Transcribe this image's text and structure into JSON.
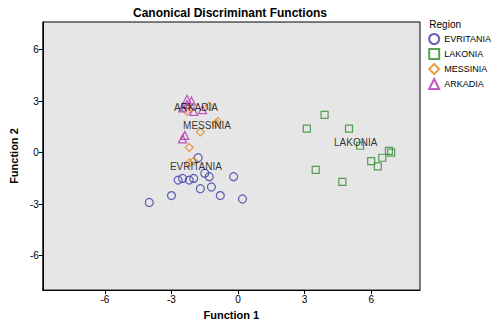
{
  "chart_data": {
    "type": "scatter",
    "title": "Canonical Discriminant Functions",
    "x_label": "Function 1",
    "y_label": "Function 2",
    "legend_title": "Region",
    "legend": "right",
    "grid": false,
    "xlim": [
      -8.8,
      8.2
    ],
    "ylim": [
      -8,
      7.6
    ],
    "xticks": [
      -6,
      -3,
      0,
      3,
      6
    ],
    "yticks": [
      -6,
      -3,
      0,
      3,
      6
    ],
    "series": [
      {
        "name": "EVRITANIA",
        "color": "#3b3ba8",
        "marker": "circle",
        "x": [
          -4.0,
          -3.0,
          -2.7,
          -2.5,
          -2.2,
          -2.0,
          -1.8,
          -1.7,
          -1.5,
          -1.3,
          -1.2,
          -0.8,
          -0.2,
          0.2
        ],
        "values": [
          -2.9,
          -2.5,
          -1.6,
          -1.5,
          -1.6,
          -1.5,
          -0.3,
          -2.1,
          -1.2,
          -1.4,
          -2.0,
          -2.5,
          -1.4,
          -2.7
        ]
      },
      {
        "name": "LAKONIA",
        "color": "#2e8b2e",
        "marker": "square",
        "x": [
          3.1,
          3.9,
          5.0,
          3.5,
          4.7,
          5.5,
          6.0,
          6.3,
          6.5,
          6.8,
          6.9
        ],
        "values": [
          1.4,
          2.2,
          1.4,
          -1.0,
          -1.7,
          0.4,
          -0.5,
          -0.8,
          -0.3,
          0.1,
          0.0
        ]
      },
      {
        "name": "MESSINIA",
        "color": "#e08a1e",
        "marker": "diamond",
        "x": [
          -1.3,
          -0.9,
          -1.0,
          -1.7,
          -2.2,
          -2.0,
          -2.2,
          -2.3
        ],
        "values": [
          2.7,
          1.8,
          1.7,
          1.2,
          0.3,
          -0.5,
          -0.6,
          2.4
        ]
      },
      {
        "name": "ARKADIA",
        "color": "#b030b0",
        "marker": "triangle",
        "x": [
          -2.3,
          -2.1,
          -2.5,
          -2.0,
          -1.6,
          -2.5,
          -2.4,
          -2.3
        ],
        "values": [
          3.1,
          3.0,
          2.6,
          2.4,
          2.5,
          0.8,
          1.0,
          2.8
        ]
      }
    ],
    "annotations": [
      {
        "text": "ARKADIA",
        "x": -1.9,
        "y": 2.6
      },
      {
        "text": "MESSINIA",
        "x": -1.4,
        "y": 1.6
      },
      {
        "text": "EVRITANIA",
        "x": -1.9,
        "y": -0.8
      },
      {
        "text": "LAKONIA",
        "x": 5.3,
        "y": 0.6
      }
    ]
  }
}
